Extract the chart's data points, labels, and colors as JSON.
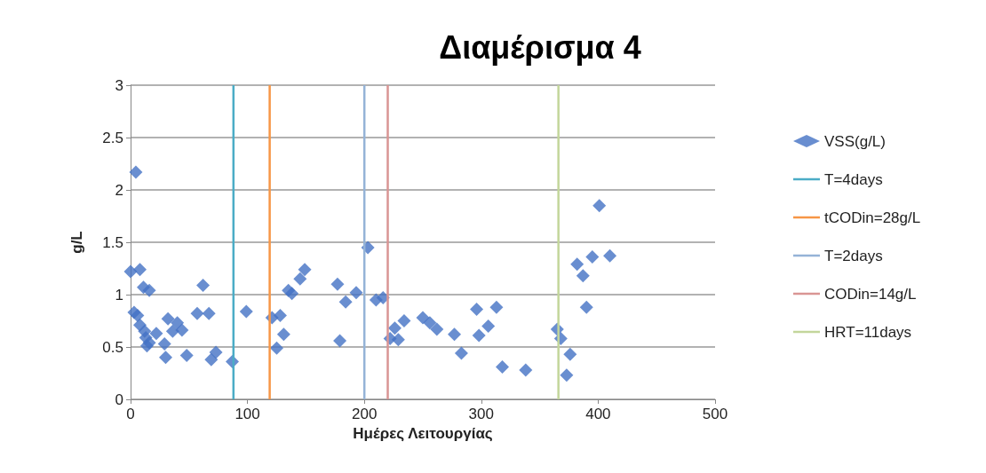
{
  "chart_data": {
    "type": "scatter",
    "title": "Διαμέρισμα 4",
    "xlabel": "Ημέρες Λειτουργίας",
    "ylabel": "g/L",
    "xlim": [
      0,
      500
    ],
    "xticks": [
      0,
      100,
      200,
      300,
      400,
      500
    ],
    "ylim": [
      0,
      3
    ],
    "yticks": [
      0,
      0.5,
      1,
      1.5,
      2,
      2.5,
      3
    ],
    "grid": "y",
    "legend": "right",
    "marker": "diamond",
    "series": [
      {
        "name": "VSS(g/L)",
        "color": "#4472c4",
        "x": [
          4.5,
          0,
          8,
          3,
          6,
          11,
          16,
          8,
          12,
          13,
          16,
          14,
          22,
          29,
          30,
          32,
          36,
          40,
          44,
          48,
          57,
          62,
          67,
          69,
          73,
          87,
          99,
          121,
          125,
          128,
          131,
          135,
          138,
          145,
          149,
          177,
          179,
          184,
          193,
          203,
          210,
          216,
          222,
          226,
          229,
          234,
          250,
          256,
          262,
          277,
          283,
          296,
          298,
          306,
          313,
          318,
          338,
          365,
          368,
          373,
          376,
          382,
          387,
          390,
          395,
          401,
          410
        ],
        "values": [
          2.17,
          1.22,
          1.24,
          0.83,
          0.8,
          1.07,
          1.04,
          0.71,
          0.65,
          0.59,
          0.54,
          0.51,
          0.63,
          0.53,
          0.4,
          0.77,
          0.65,
          0.73,
          0.66,
          0.42,
          0.82,
          1.09,
          0.82,
          0.38,
          0.45,
          0.36,
          0.84,
          0.78,
          0.49,
          0.8,
          0.62,
          1.04,
          1.01,
          1.15,
          1.24,
          1.1,
          0.56,
          0.93,
          1.02,
          1.45,
          0.95,
          0.97,
          0.58,
          0.68,
          0.57,
          0.75,
          0.78,
          0.73,
          0.67,
          0.62,
          0.44,
          0.86,
          0.61,
          0.7,
          0.88,
          0.31,
          0.28,
          0.67,
          0.58,
          0.23,
          0.43,
          1.29,
          1.18,
          0.88,
          1.36,
          1.85,
          1.37
        ]
      },
      {
        "type": "line",
        "marker": "none",
        "name": "T=4days",
        "color": "#4bacc6",
        "x": [
          88,
          88
        ],
        "values": [
          0,
          3
        ]
      },
      {
        "type": "line",
        "marker": "none",
        "name": "tCODin=28g/L",
        "color": "#f79646",
        "x": [
          119,
          119
        ],
        "values": [
          0,
          3
        ]
      },
      {
        "type": "line",
        "marker": "none",
        "name": "T=2days",
        "color": "#95b3d7",
        "x": [
          200,
          200
        ],
        "values": [
          0,
          3
        ]
      },
      {
        "type": "line",
        "marker": "none",
        "name": "CODin=14g/L",
        "color": "#d99594",
        "x": [
          220,
          220
        ],
        "values": [
          0,
          3
        ]
      },
      {
        "type": "line",
        "marker": "none",
        "name": "HRT=11days",
        "color": "#c3d69b",
        "x": [
          366,
          366
        ],
        "values": [
          0,
          3
        ]
      }
    ]
  }
}
